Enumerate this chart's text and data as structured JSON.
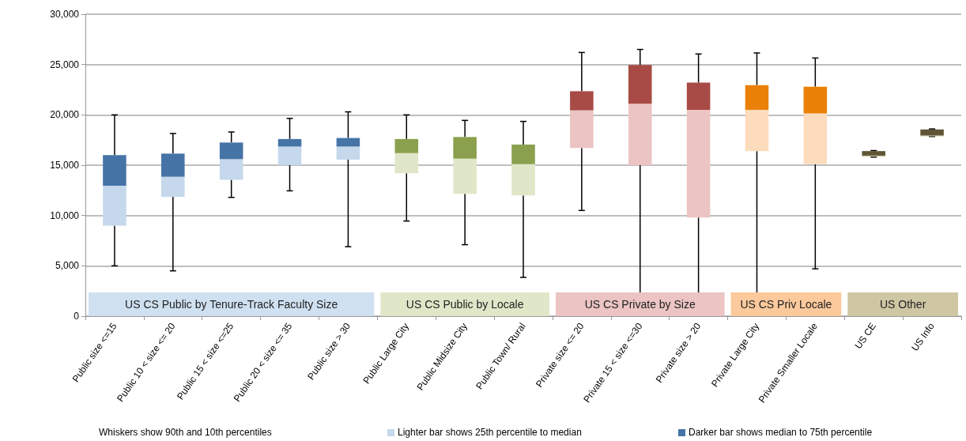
{
  "chart_data": {
    "type": "box",
    "categories": [
      "Public size <=15",
      "Public 10 < size <= 20",
      "Public 15 < size <=25",
      "Public 20 < size <= 35",
      "Public size > 30",
      "Public Large City",
      "Public Midsize City",
      "Public Town/ Rural",
      "Private size <= 20",
      "Private 15 < size <=30",
      "Private size > 20",
      "Private Large City",
      "Private Smaller Locale",
      "US CE",
      "US Info"
    ],
    "boxes": [
      {
        "low": 5000,
        "q1": 9000,
        "median": 12950,
        "q3": 16000,
        "high": 20000
      },
      {
        "low": 4500,
        "q1": 11850,
        "median": 13850,
        "q3": 16150,
        "high": 18150
      },
      {
        "low": 11800,
        "q1": 13550,
        "median": 15600,
        "q3": 17250,
        "high": 18300
      },
      {
        "low": 12450,
        "q1": 15000,
        "median": 16850,
        "q3": 17600,
        "high": 19650
      },
      {
        "low": 6900,
        "q1": 15550,
        "median": 16850,
        "q3": 17700,
        "high": 20300
      },
      {
        "low": 9450,
        "q1": 14200,
        "median": 16200,
        "q3": 17600,
        "high": 20000
      },
      {
        "low": 7100,
        "q1": 12150,
        "median": 15650,
        "q3": 17800,
        "high": 19450
      },
      {
        "low": 3850,
        "q1": 12000,
        "median": 15100,
        "q3": 17050,
        "high": 19350
      },
      {
        "low": 10500,
        "q1": 16700,
        "median": 20450,
        "q3": 22350,
        "high": 26200
      },
      {
        "low": null,
        "q1": 15000,
        "median": 21100,
        "q3": 24950,
        "high": 26500
      },
      {
        "low": null,
        "q1": 9800,
        "median": 20500,
        "q3": 23200,
        "high": 26050
      },
      {
        "low": null,
        "q1": 16400,
        "median": 20500,
        "q3": 22950,
        "high": 26150
      },
      {
        "low": 4700,
        "q1": 15100,
        "median": 20150,
        "q3": 22800,
        "high": 25650
      },
      {
        "low": 15800,
        "q1": 15850,
        "median": 15950,
        "q3": 16400,
        "high": 16450
      },
      {
        "low": 17850,
        "q1": 17870,
        "median": 17950,
        "q3": 18550,
        "high": 18600
      }
    ],
    "colors": [
      [
        "#c5d8ec",
        "#4674a6"
      ],
      [
        "#c5d8ec",
        "#4674a6"
      ],
      [
        "#c5d8ec",
        "#4674a6"
      ],
      [
        "#c5d8ec",
        "#4674a6"
      ],
      [
        "#c5d8ec",
        "#4674a6"
      ],
      [
        "#dfe7c8",
        "#8aa04e"
      ],
      [
        "#dfe7c8",
        "#8aa04e"
      ],
      [
        "#dfe7c8",
        "#8aa04e"
      ],
      [
        "#ebc4c3",
        "#a84a45"
      ],
      [
        "#ebc4c3",
        "#a84a45"
      ],
      [
        "#ebc4c3",
        "#a84a45"
      ],
      [
        "#fcdcbd",
        "#ea8005"
      ],
      [
        "#fcdcbd",
        "#ea8005"
      ],
      [
        "#cfc6a4",
        "#5e5636"
      ],
      [
        "#cfc6a4",
        "#5e5636"
      ]
    ],
    "ylim": [
      0,
      30000
    ],
    "yticks": [
      0,
      {
        "value": 5000,
        "label": "5,000"
      },
      {
        "value": 10000,
        "label": "10,000"
      },
      {
        "value": 15000,
        "label": "15,000"
      },
      {
        "value": 20000,
        "label": "20,000"
      },
      {
        "value": 25000,
        "label": "25,000"
      },
      {
        "value": 30000,
        "label": "30,000"
      }
    ],
    "grid": "y",
    "bands": [
      {
        "axis": "x",
        "from": "Public size <=15",
        "to": "Public size > 30",
        "label": "US CS Public by Tenure-Track Faculty Size",
        "color": "#cfe0f1"
      },
      {
        "axis": "x",
        "from": "Public Large City",
        "to": "Public Town/ Rural",
        "label": "US CS Public by Locale",
        "color": "#dfe7c8"
      },
      {
        "axis": "x",
        "from": "Private size <= 20",
        "to": "Private size > 20",
        "label": "US CS Private by Size",
        "color": "#ebc4c3"
      },
      {
        "axis": "x",
        "from": "Private Large City",
        "to": "Private Smaller Locale",
        "label": "US CS Priv Locale",
        "color": "#fbc99b"
      },
      {
        "axis": "x",
        "from": "US CE",
        "to": "US Info",
        "label": "US Other",
        "color": "#cfc6a4"
      }
    ],
    "annotations": [
      "Whiskers show 90th and 10th percentiles",
      "Lighter bar shows 25th percentile to median",
      "Darker bar shows median to 75th percentile"
    ]
  }
}
